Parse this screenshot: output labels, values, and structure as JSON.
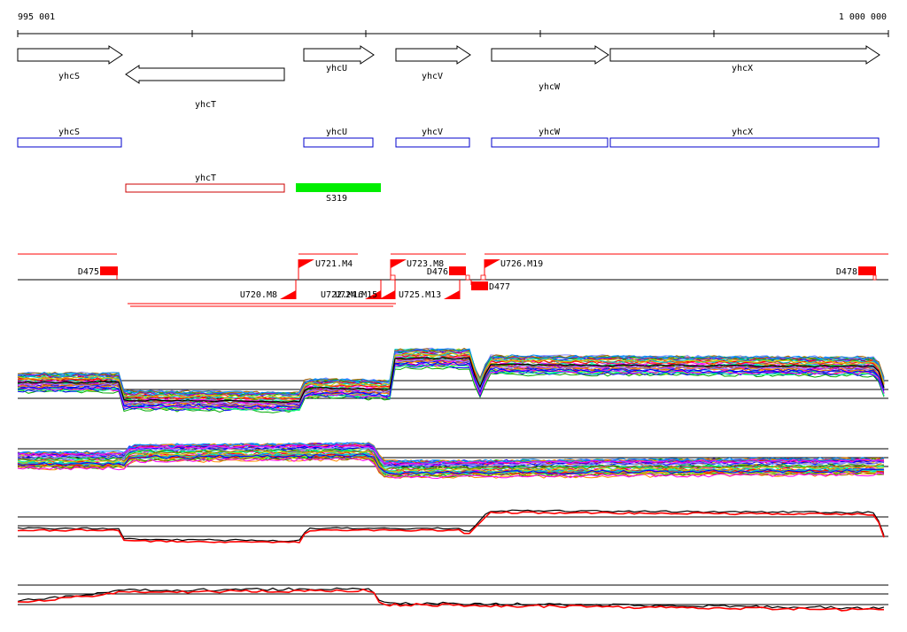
{
  "ruler": {
    "start_label": "995 001",
    "end_label": "1 000 000"
  },
  "genes_arrows": [
    {
      "name": "yhcS",
      "strand": "+"
    },
    {
      "name": "yhcT",
      "strand": "-"
    },
    {
      "name": "yhcU",
      "strand": "+"
    },
    {
      "name": "yhcV",
      "strand": "+"
    },
    {
      "name": "yhcW",
      "strand": "+"
    },
    {
      "name": "yhcX",
      "strand": "+"
    }
  ],
  "genes_boxes_top": [
    {
      "name": "yhcS"
    },
    {
      "name": "yhcU"
    },
    {
      "name": "yhcV"
    },
    {
      "name": "yhcW"
    },
    {
      "name": "yhcX"
    }
  ],
  "genes_boxes_bottom": [
    {
      "name": "yhcT"
    }
  ],
  "feature_s": {
    "name": "S319",
    "color": "#00ee00"
  },
  "segments_upper": [
    {
      "name": "D475"
    },
    {
      "name": "U721.M4"
    },
    {
      "name": "U723.M8"
    },
    {
      "name": "D476"
    },
    {
      "name": "U726.M19"
    },
    {
      "name": "D478"
    }
  ],
  "segments_lower": [
    {
      "name": "U720.M8"
    },
    {
      "name": "U722.M16"
    },
    {
      "name": "U724.M15"
    },
    {
      "name": "U725.M13"
    },
    {
      "name": "D477"
    }
  ],
  "colors": {
    "gene_outline": "#000000",
    "gene_box_top": "#0000cc",
    "gene_box_bottom": "#cc0000",
    "segment": "#ff0000"
  }
}
